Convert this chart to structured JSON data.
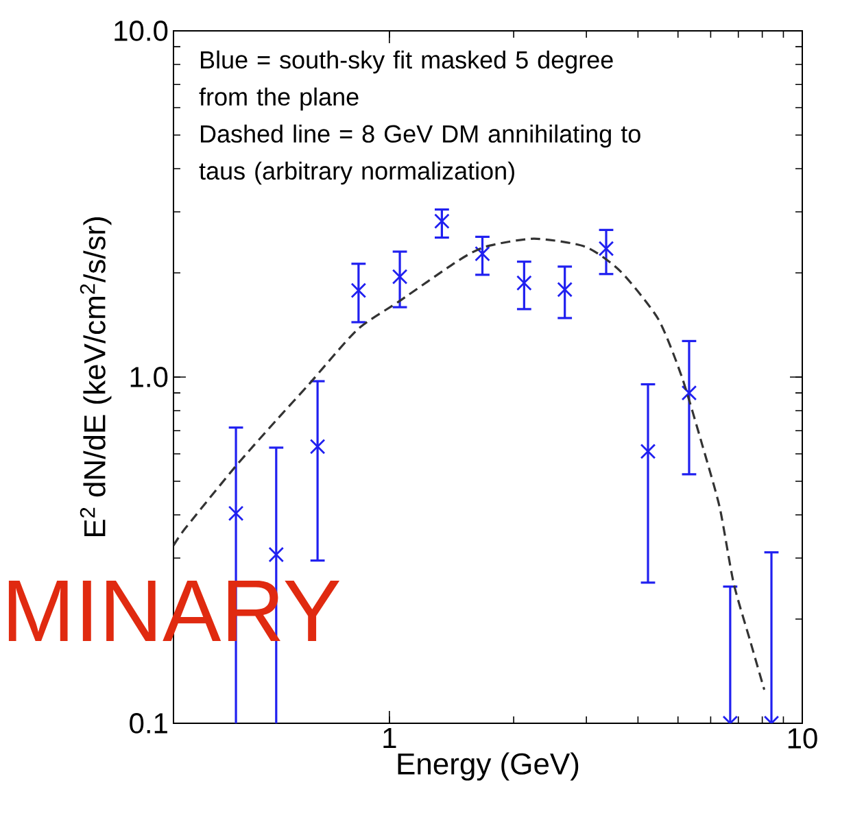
{
  "chart_data": {
    "type": "scatter",
    "xlabel": "Energy (GeV)",
    "ylabel": "E$^{2}$ dN/dE (keV/cm$^{2}$/s/sr)",
    "log": "xy",
    "xlim": [
      0.3,
      10
    ],
    "xticks": [
      1,
      10
    ],
    "ylim": [
      0.1,
      10
    ],
    "yticks": [
      {
        "value": 0.1,
        "label": "0.1"
      },
      {
        "value": 1,
        "label": "1.0"
      },
      {
        "value": 10,
        "label": "10.0"
      }
    ],
    "annotations": [
      "Blue = south-sky fit masked 5 degree from the plane",
      "Dashed line = 8 GeV DM annihilating to taus (arbitrary normalization)",
      "MINARY"
    ],
    "series": [
      {
        "color": "#2020f0",
        "marker": "cross",
        "x": [
          0.425,
          0.532,
          0.67,
          0.842,
          1.06,
          1.34,
          1.68,
          2.12,
          2.66,
          3.35,
          4.23,
          5.32,
          6.69,
          8.42
        ],
        "values": [
          0.404,
          0.307,
          0.63,
          1.78,
          1.95,
          2.82,
          2.27,
          1.87,
          1.79,
          2.35,
          0.61,
          0.9,
          0.1,
          0.1
        ],
        "errors": [
          [
            0.1,
            0.72
          ],
          [
            0.1,
            0.63
          ],
          [
            0.293,
            0.98
          ],
          [
            1.43,
            2.14
          ],
          [
            1.58,
            2.32
          ],
          [
            2.51,
            3.07
          ],
          [
            1.96,
            2.56
          ],
          [
            1.56,
            2.17
          ],
          [
            1.47,
            2.1
          ],
          [
            1.97,
            2.68
          ],
          [
            0.253,
            0.96
          ],
          [
            0.52,
            1.28
          ],
          [
            0.1,
            0.25
          ],
          [
            0.1,
            0.314
          ]
        ]
      },
      {
        "type": "line",
        "color": "#333333",
        "line_style": "dashed",
        "x": [
          0.3,
          0.32,
          0.423,
          0.532,
          0.637,
          0.836,
          1.06,
          1.46,
          1.71,
          2.24,
          2.98,
          3.63,
          4.48,
          5.11,
          5.74,
          6.31,
          6.82,
          7.49,
          8.09
        ],
        "values": [
          0.326,
          0.365,
          0.55,
          0.75,
          0.95,
          1.37,
          1.66,
          2.16,
          2.38,
          2.51,
          2.38,
          2.02,
          1.47,
          1.0,
          0.63,
          0.42,
          0.254,
          0.172,
          0.125
        ]
      }
    ]
  }
}
